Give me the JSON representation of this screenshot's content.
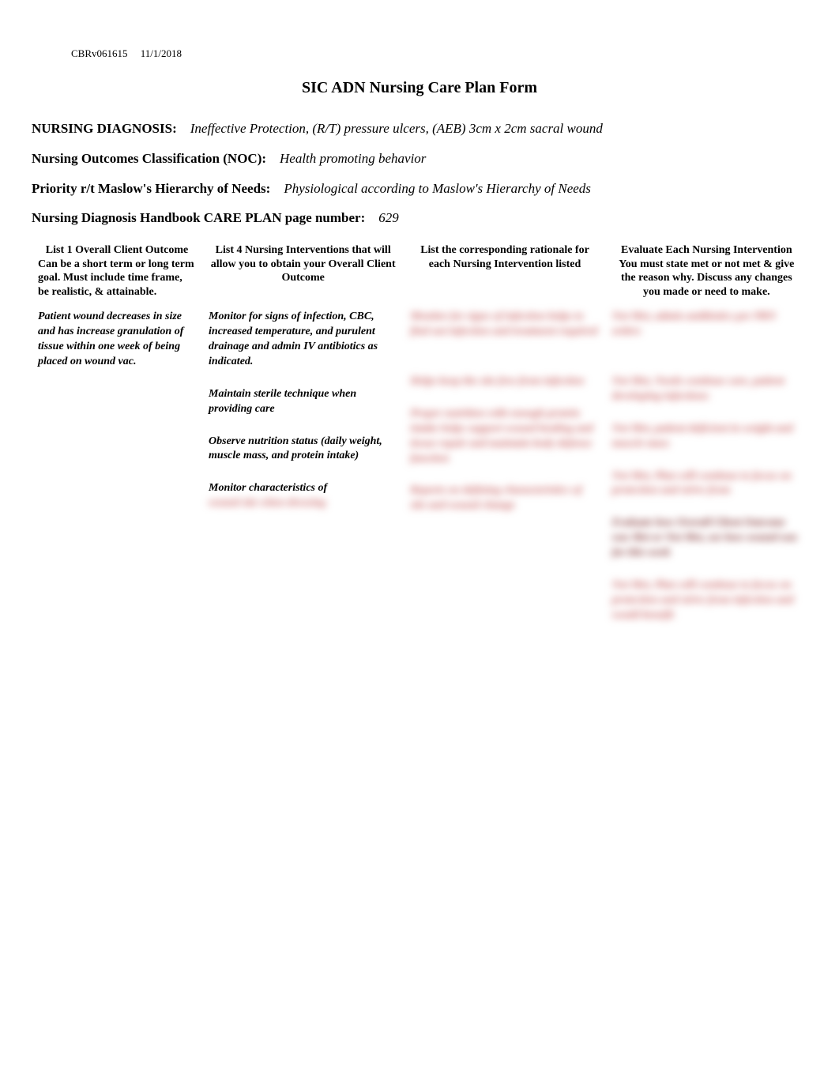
{
  "meta": {
    "doc_code": "CBRv061615",
    "date": "11/1/2018"
  },
  "title": "SIC ADN Nursing Care Plan Form",
  "fields": {
    "diagnosis_label": "NURSING DIAGNOSIS:",
    "diagnosis_value": "Ineffective Protection, (R/T) pressure ulcers, (AEB) 3cm x 2cm sacral wound",
    "noc_label": "Nursing Outcomes Classification (NOC):",
    "noc_value": "Health promoting behavior",
    "priority_label": "Priority r/t Maslow's Hierarchy of Needs:",
    "priority_value": "Physiological according to Maslow's Hierarchy of Needs",
    "pagenum_label": "Nursing Diagnosis Handbook CARE PLAN page number:",
    "pagenum_value": "629"
  },
  "table": {
    "headers": {
      "col1_main": "List 1 Overall Client Outcome",
      "col1_sub": "Can be a short term or long term goal. Must include time frame, be realistic, & attainable.",
      "col2_main": "List 4 Nursing Interventions that will allow you to obtain your Overall Client Outcome",
      "col3_main": "List the corresponding rationale for each Nursing Intervention listed",
      "col4_main": "Evaluate Each Nursing Intervention",
      "col4_sub": "You must state met or not met & give the reason why. Discuss any changes you made or need to make."
    },
    "outcome": "Patient wound decreases in size and has increase granulation of tissue within one week of being placed on wound vac.",
    "interventions": {
      "i1": "Monitor for signs of infection, CBC, increased temperature, and purulent drainage and admin IV antibiotics as indicated.",
      "i2": "Maintain sterile technique when providing care",
      "i3": "Observe nutrition status (daily weight, muscle mass, and protein intake)",
      "i4": "Monitor characteristics of",
      "i4_blur": "wound site when dressing"
    },
    "rationale_blur": {
      "r1": "Monitor for signs of infection helps to find out infection and treatment required",
      "r2": "Helps keep the site free from infection",
      "r3": "Proper nutrition with enough protein intake helps support wound healing and tissue repair and maintain body defense function",
      "r4": "Reports on defining characteristics of site and wound change"
    },
    "eval_blur": {
      "e1": "Not Met, admin antibiotics per PRN orders",
      "e2": "Not Met, Needs continue care, patient developing infections",
      "e3": "Not Met, patient deficient in weight and muscle mass",
      "e4a": "Not Met, Plan will continue to focus on protection and strive from",
      "e4b": "Evaluate how Overall Client Outcome was Met or Not Met, see how wound was for this week",
      "e4c": "Not Met, Plan will continue to focus on protection and strive from infection and would benefit"
    }
  }
}
